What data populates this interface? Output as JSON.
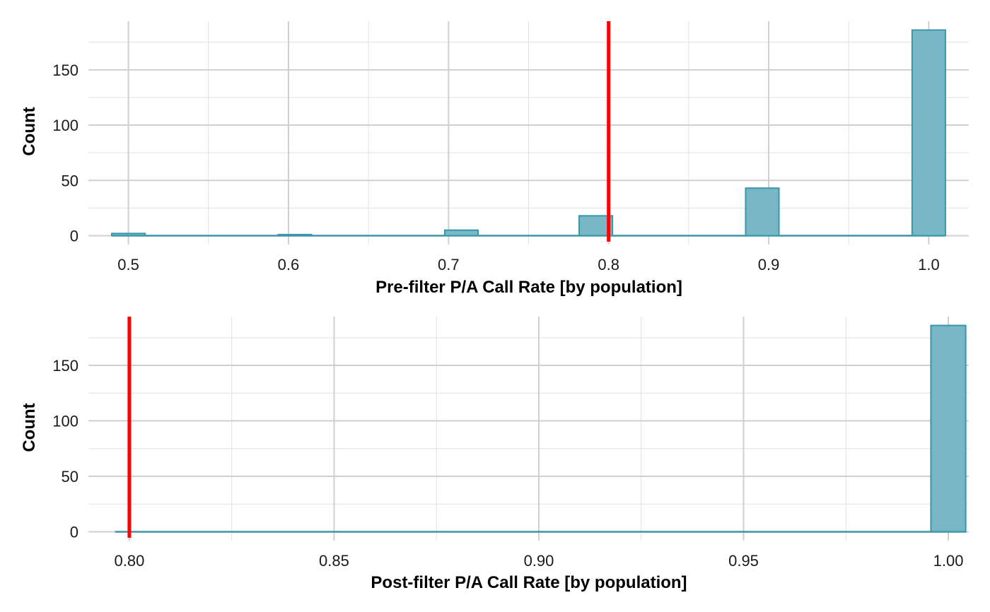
{
  "chart_data": [
    {
      "type": "bar",
      "title": "",
      "xlabel": "Pre-filter P/A Call Rate [by population]",
      "ylabel": "Count",
      "xlim": [
        0.475,
        1.025
      ],
      "ylim": [
        -8,
        194
      ],
      "x_ticks": [
        0.5,
        0.6,
        0.7,
        0.8,
        0.9,
        1.0
      ],
      "x_tick_labels": [
        "0.5",
        "0.6",
        "0.7",
        "0.8",
        "0.9",
        "1.0"
      ],
      "y_ticks": [
        0,
        50,
        100,
        150
      ],
      "y_tick_labels": [
        "0",
        "50",
        "100",
        "150"
      ],
      "bin_width": 0.0208,
      "bins": [
        {
          "x": 0.5,
          "count": 2
        },
        {
          "x": 0.604,
          "count": 1
        },
        {
          "x": 0.708,
          "count": 5
        },
        {
          "x": 0.792,
          "count": 18
        },
        {
          "x": 0.896,
          "count": 43
        },
        {
          "x": 1.0,
          "count": 186
        }
      ],
      "baseline_range": [
        0.49,
        1.01
      ],
      "threshold": 0.8,
      "threshold_color": "#ff0000",
      "bar_fill": "#78b7c5",
      "bar_outline": "#3a96aa",
      "grid": true
    },
    {
      "type": "bar",
      "title": "",
      "xlabel": "Post-filter P/A Call Rate [by population]",
      "ylabel": "Count",
      "xlim": [
        0.79,
        1.005
      ],
      "ylim": [
        -8,
        194
      ],
      "x_ticks": [
        0.8,
        0.85,
        0.9,
        0.95,
        1.0
      ],
      "x_tick_labels": [
        "0.80",
        "0.85",
        "0.90",
        "0.95",
        "1.00"
      ],
      "y_ticks": [
        0,
        50,
        100,
        150
      ],
      "y_tick_labels": [
        "0",
        "50",
        "100",
        "150"
      ],
      "bin_width": 0.0085,
      "bins": [
        {
          "x": 1.0,
          "count": 186
        }
      ],
      "baseline_range": [
        0.7965,
        1.0043
      ],
      "threshold": 0.8,
      "threshold_color": "#ff0000",
      "bar_fill": "#78b7c5",
      "bar_outline": "#3a96aa",
      "grid": true
    }
  ]
}
